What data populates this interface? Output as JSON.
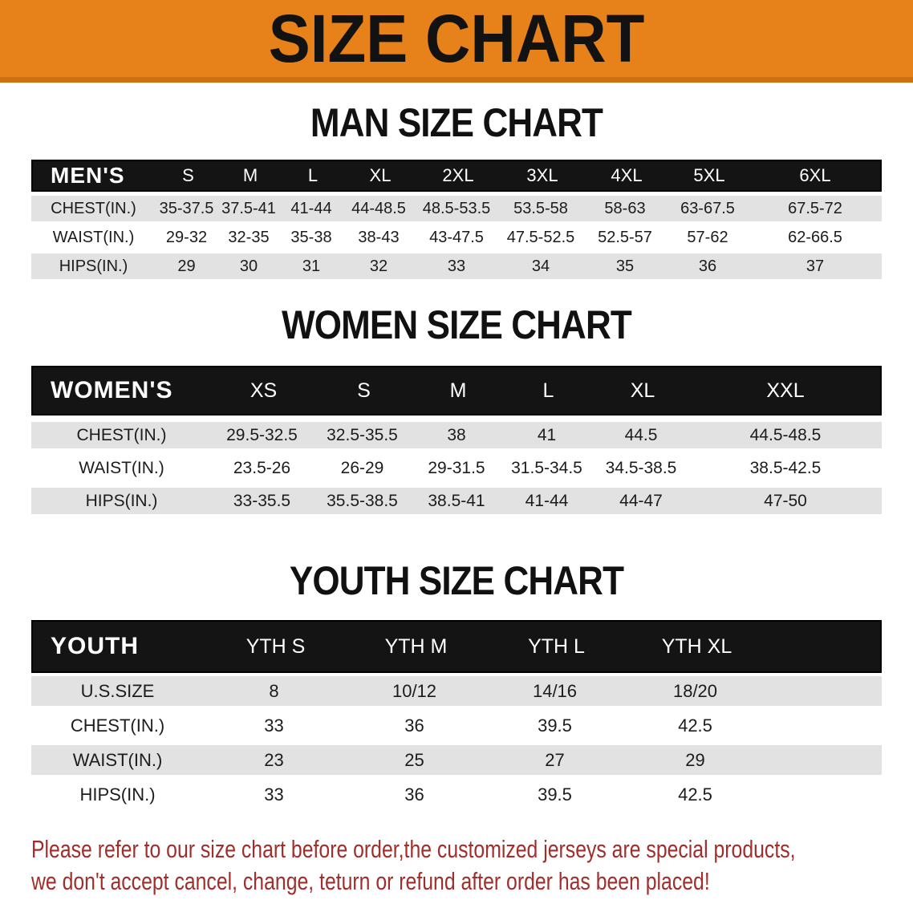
{
  "banner": {
    "title": "SIZE CHART",
    "bg_color": "#E7821B",
    "text_color": "#121212"
  },
  "sections": [
    {
      "heading": "MAN SIZE CHART",
      "table": {
        "header_label": "MEN'S",
        "columns": [
          "S",
          "M",
          "L",
          "XL",
          "2XL",
          "3XL",
          "4XL",
          "5XL",
          "6XL"
        ],
        "rows": [
          {
            "label": "CHEST(IN.)",
            "values": [
              "35-37.5",
              "37.5-41",
              "41-44",
              "44-48.5",
              "48.5-53.5",
              "53.5-58",
              "58-63",
              "63-67.5",
              "67.5-72"
            ]
          },
          {
            "label": "WAIST(IN.)",
            "values": [
              "29-32",
              "32-35",
              "35-38",
              "38-43",
              "43-47.5",
              "47.5-52.5",
              "52.5-57",
              "57-62",
              "62-66.5"
            ]
          },
          {
            "label": "HIPS(IN.)",
            "values": [
              "29",
              "30",
              "31",
              "32",
              "33",
              "34",
              "35",
              "36",
              "37"
            ]
          }
        ]
      }
    },
    {
      "heading": "WOMEN SIZE CHART",
      "table": {
        "header_label": "WOMEN'S",
        "columns": [
          "XS",
          "S",
          "M",
          "L",
          "XL",
          "XXL"
        ],
        "rows": [
          {
            "label": "CHEST(IN.)",
            "values": [
              "29.5-32.5",
              "32.5-35.5",
              "38",
              "41",
              "44.5",
              "44.5-48.5"
            ]
          },
          {
            "label": "WAIST(IN.)",
            "values": [
              "23.5-26",
              "26-29",
              "29-31.5",
              "31.5-34.5",
              "34.5-38.5",
              "38.5-42.5"
            ]
          },
          {
            "label": "HIPS(IN.)",
            "values": [
              "33-35.5",
              "35.5-38.5",
              "38.5-41",
              "41-44",
              "44-47",
              "47-50"
            ]
          }
        ]
      }
    },
    {
      "heading": "YOUTH SIZE CHART",
      "table": {
        "header_label": "YOUTH",
        "columns": [
          "YTH S",
          "YTH M",
          "YTH L",
          "YTH XL"
        ],
        "rows": [
          {
            "label": "U.S.SIZE",
            "values": [
              "8",
              "10/12",
              "14/16",
              "18/20"
            ]
          },
          {
            "label": "CHEST(IN.)",
            "values": [
              "33",
              "36",
              "39.5",
              "42.5"
            ]
          },
          {
            "label": "WAIST(IN.)",
            "values": [
              "23",
              "25",
              "27",
              "29"
            ]
          },
          {
            "label": "HIPS(IN.)",
            "values": [
              "33",
              "36",
              "39.5",
              "42.5"
            ]
          }
        ]
      }
    }
  ],
  "footnote": {
    "color": "#A12E2B",
    "line1": "Please refer to our size chart before order,the customized jerseys are special products,",
    "line2": "we don't accept cancel, change, teturn or refund after order has been placed!"
  }
}
